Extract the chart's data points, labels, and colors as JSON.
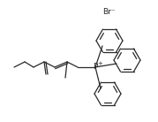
{
  "background_color": "#ffffff",
  "line_color": "#2a2a2a",
  "line_width": 0.9,
  "text_color": "#2a2a2a",
  "br_label": "Br⁻",
  "figsize": [
    1.79,
    1.38
  ],
  "dpi": 100
}
